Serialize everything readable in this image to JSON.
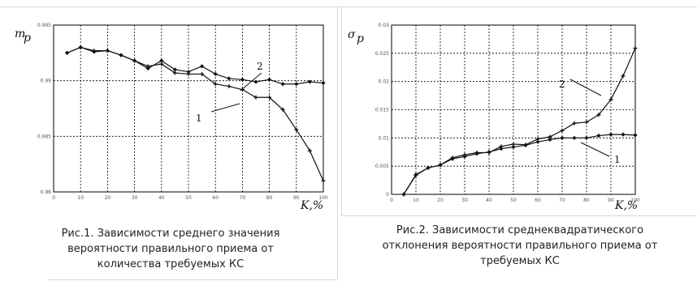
{
  "chart_data": [
    {
      "type": "line",
      "title": "",
      "ylabel": "m",
      "ylabel_sub": "p",
      "xlabel": "K,%",
      "xlim": [
        0,
        100
      ],
      "ylim": [
        0.98,
        0.995
      ],
      "xticks": [
        "0",
        "10",
        "20",
        "30",
        "40",
        "50",
        "60",
        "70",
        "80",
        "90",
        "100"
      ],
      "yticks": [
        "0.98",
        "0.985",
        "0.99",
        "0.995"
      ],
      "grid": true,
      "series": [
        {
          "name": "1",
          "x": [
            5,
            10,
            15,
            20,
            25,
            30,
            35,
            40,
            45,
            50,
            55,
            60,
            65,
            70,
            75,
            80,
            85,
            90,
            95,
            100
          ],
          "values": [
            0.9925,
            0.993,
            0.9926,
            0.9927,
            0.9923,
            0.9918,
            0.9911,
            0.9918,
            0.991,
            0.9908,
            0.9913,
            0.9906,
            0.9902,
            0.9901,
            0.9899,
            0.9901,
            0.9897,
            0.9897,
            0.9899,
            0.9898
          ]
        },
        {
          "name": "2",
          "x": [
            5,
            10,
            15,
            20,
            25,
            30,
            35,
            40,
            45,
            50,
            55,
            60,
            65,
            70,
            75,
            80,
            85,
            90,
            95,
            100
          ],
          "values": [
            0.9925,
            0.993,
            0.9927,
            0.9927,
            0.9923,
            0.9918,
            0.9913,
            0.9915,
            0.9907,
            0.9906,
            0.9906,
            0.9897,
            0.9895,
            0.9892,
            0.9885,
            0.9885,
            0.9874,
            0.9856,
            0.9837,
            0.981
          ]
        }
      ],
      "curve_labels": [
        "1",
        "2"
      ],
      "caption_lines": [
        "Рис.1. Зависимости среднего значения",
        "вероятности правильного приема от",
        "количества требуемых КС"
      ]
    },
    {
      "type": "line",
      "title": "",
      "ylabel": "σ",
      "ylabel_sub": "p",
      "xlabel": "K,%",
      "xlim": [
        0,
        100
      ],
      "ylim": [
        0,
        0.03
      ],
      "xticks": [
        "0",
        "10",
        "20",
        "30",
        "40",
        "50",
        "60",
        "70",
        "80",
        "90",
        "100"
      ],
      "yticks": [
        "0",
        "0.005",
        "0.01",
        "0.015",
        "0.02",
        "0.025",
        "0.03"
      ],
      "grid": true,
      "series": [
        {
          "name": "1",
          "x": [
            5,
            10,
            15,
            20,
            25,
            30,
            35,
            40,
            45,
            50,
            55,
            60,
            65,
            70,
            75,
            80,
            85,
            90,
            95,
            100
          ],
          "values": [
            0,
            0.0035,
            0.0047,
            0.0052,
            0.0063,
            0.0067,
            0.0072,
            0.0075,
            0.0081,
            0.0084,
            0.0087,
            0.0093,
            0.0097,
            0.01,
            0.01,
            0.01,
            0.0104,
            0.0106,
            0.0106,
            0.0105
          ]
        },
        {
          "name": "2",
          "x": [
            5,
            10,
            15,
            20,
            25,
            30,
            35,
            40,
            45,
            50,
            55,
            60,
            65,
            70,
            75,
            80,
            85,
            90,
            95,
            100
          ],
          "values": [
            0,
            0.0034,
            0.0047,
            0.0052,
            0.0065,
            0.007,
            0.0074,
            0.0074,
            0.0085,
            0.0089,
            0.0088,
            0.0098,
            0.0102,
            0.0113,
            0.0126,
            0.0128,
            0.0141,
            0.0168,
            0.021,
            0.0259
          ]
        }
      ],
      "curve_labels": [
        "2",
        "1"
      ],
      "caption_lines": [
        "Рис.2. Зависимости среднеквадратического",
        "отклонения вероятности правильного приема от",
        "требуемых КС"
      ]
    }
  ]
}
